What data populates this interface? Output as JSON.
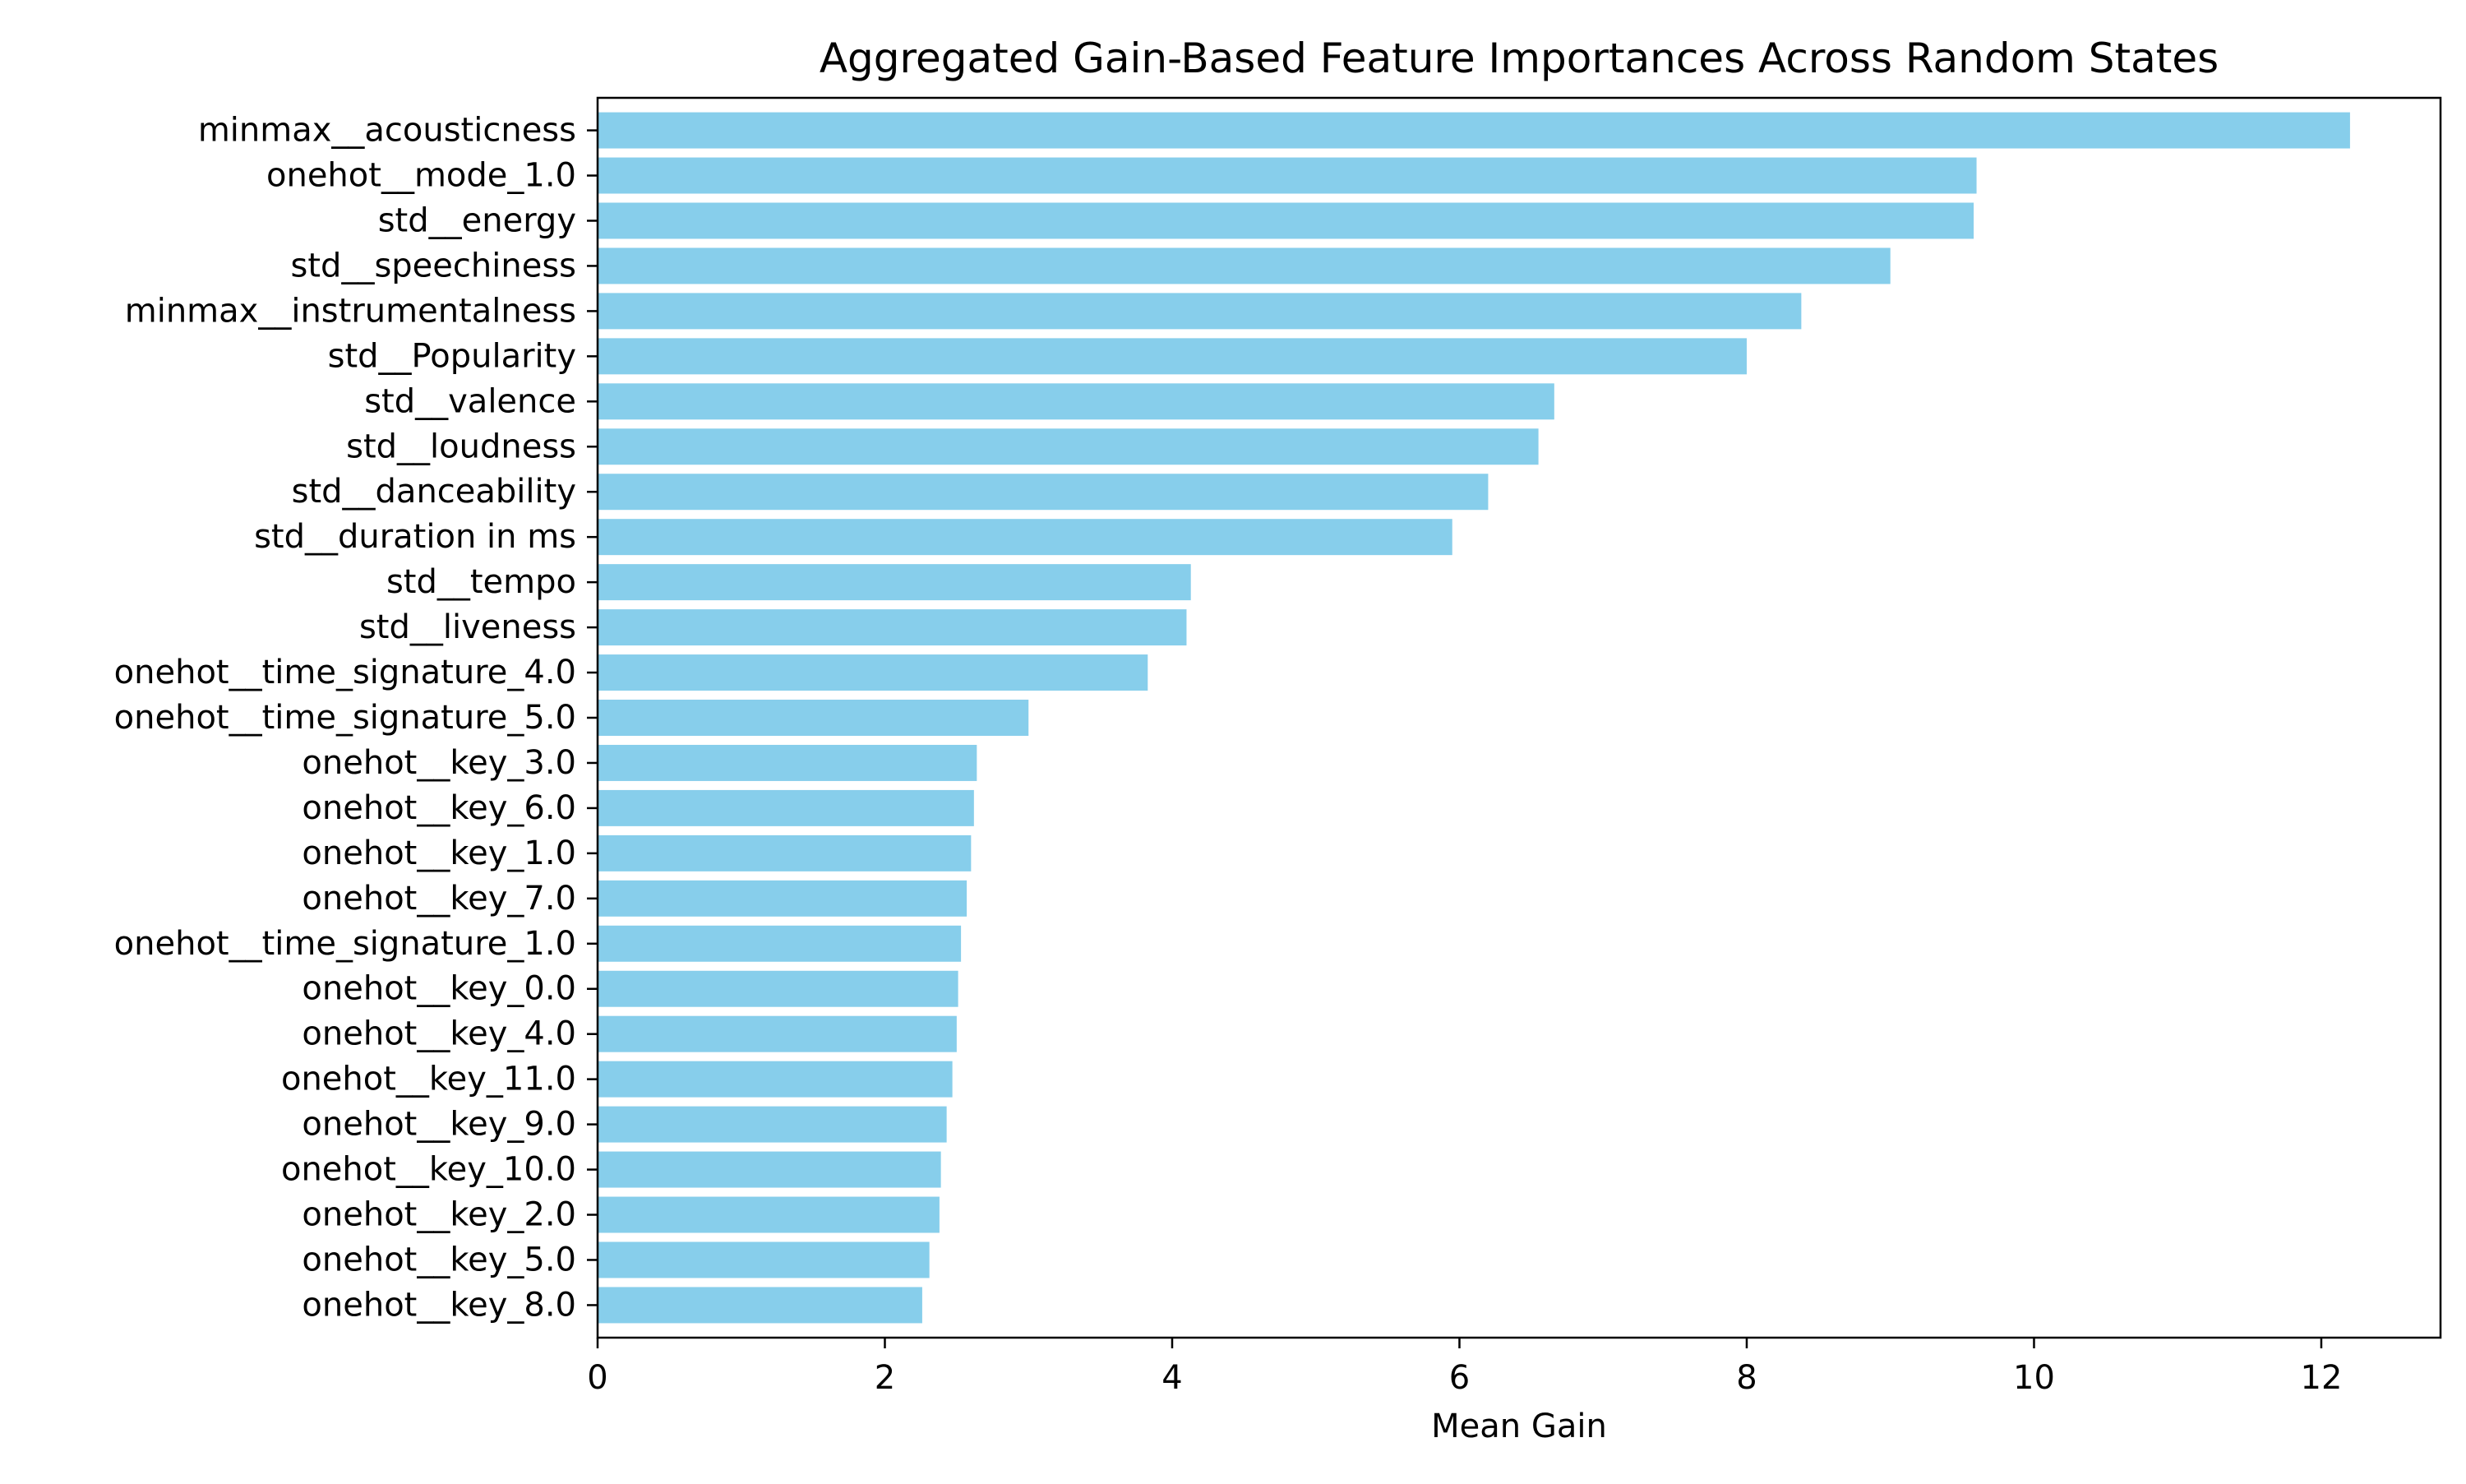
{
  "chart_data": {
    "type": "bar",
    "orientation": "horizontal",
    "title": "Aggregated Gain-Based Feature Importances Across Random States",
    "xlabel": "Mean Gain",
    "ylabel": "",
    "xlim": [
      0,
      12.83
    ],
    "xticks": [
      0,
      2,
      4,
      6,
      8,
      10,
      12
    ],
    "xtick_labels": [
      "0",
      "2",
      "4",
      "6",
      "8",
      "10",
      "12"
    ],
    "bar_color": "#87ceeb",
    "grid": false,
    "legend": "none",
    "categories": [
      "minmax__acousticness",
      "onehot__mode_1.0",
      "std__energy",
      "std__speechiness",
      "minmax__instrumentalness",
      "std__Popularity",
      "std__valence",
      "std__loudness",
      "std__danceability",
      "std__duration in ms",
      "std__tempo",
      "std__liveness",
      "onehot__time_signature_4.0",
      "onehot__time_signature_5.0",
      "onehot__key_3.0",
      "onehot__key_6.0",
      "onehot__key_1.0",
      "onehot__key_7.0",
      "onehot__time_signature_1.0",
      "onehot__key_0.0",
      "onehot__key_4.0",
      "onehot__key_11.0",
      "onehot__key_9.0",
      "onehot__key_10.0",
      "onehot__key_2.0",
      "onehot__key_5.0",
      "onehot__key_8.0"
    ],
    "values": [
      12.2,
      9.6,
      9.58,
      9.0,
      8.38,
      8.0,
      6.66,
      6.55,
      6.2,
      5.95,
      4.13,
      4.1,
      3.83,
      3.0,
      2.64,
      2.62,
      2.6,
      2.57,
      2.53,
      2.51,
      2.5,
      2.47,
      2.43,
      2.39,
      2.38,
      2.31,
      2.26
    ]
  }
}
